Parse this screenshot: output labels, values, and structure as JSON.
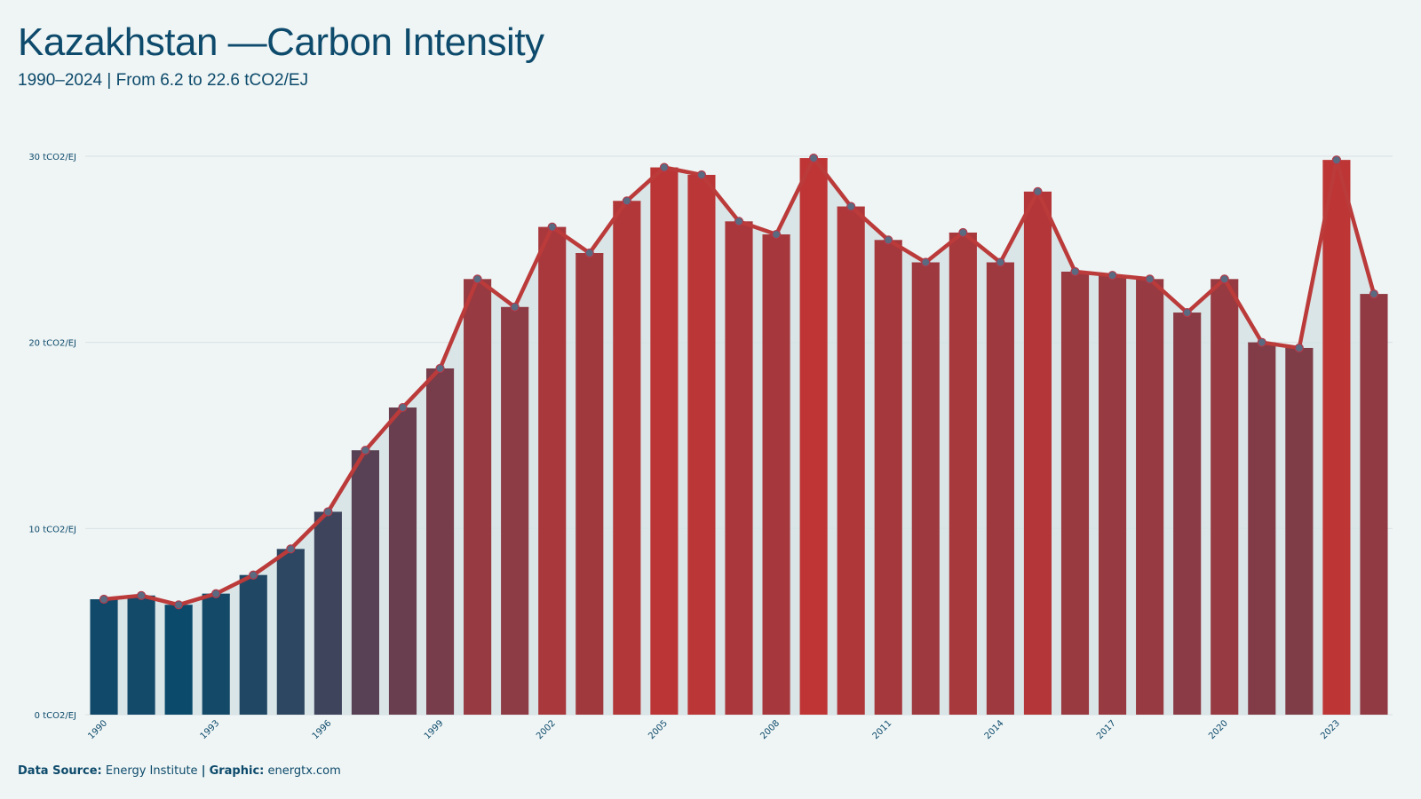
{
  "header": {
    "title": "Kazakhstan —Carbon Intensity",
    "subtitle": "1990–2024 | From 6.2 to 22.6 tCO2/EJ"
  },
  "footer": {
    "source_label": "Data Source:",
    "source_value": "Energy Institute",
    "separator": "|",
    "graphic_label": "Graphic:",
    "graphic_value": "energtx.com"
  },
  "colors": {
    "background": "#eff5f5",
    "line": "#bb3a3a",
    "area": "#d6e3e6",
    "low": "#0b4a6b",
    "high": "#bf3535",
    "grid": "#d9e1e3",
    "text": "#0d4a6b"
  },
  "chart_data": {
    "type": "bar",
    "overlay": "line",
    "unit": "tCO2/EJ",
    "x": [
      1990,
      1991,
      1992,
      1993,
      1994,
      1995,
      1996,
      1997,
      1998,
      1999,
      2000,
      2001,
      2002,
      2003,
      2004,
      2005,
      2006,
      2007,
      2008,
      2009,
      2010,
      2011,
      2012,
      2013,
      2014,
      2015,
      2016,
      2017,
      2018,
      2019,
      2020,
      2021,
      2022,
      2023,
      2024
    ],
    "values": [
      6.2,
      6.4,
      5.9,
      6.5,
      7.5,
      8.9,
      10.9,
      14.2,
      16.5,
      18.6,
      23.4,
      21.9,
      26.2,
      24.8,
      27.6,
      29.4,
      29.0,
      26.5,
      25.8,
      29.9,
      27.3,
      25.5,
      24.3,
      25.9,
      24.3,
      28.1,
      23.8,
      23.6,
      23.4,
      21.6,
      23.4,
      20.0,
      19.7,
      29.8,
      22.6
    ],
    "x_tick_labels": [
      "1990",
      "1993",
      "1996",
      "1999",
      "2002",
      "2005",
      "2008",
      "2011",
      "2014",
      "2017",
      "2020",
      "2023"
    ],
    "y_ticks": [
      0,
      10,
      20,
      30
    ],
    "y_tick_labels": [
      "0 tCO2/EJ",
      "10 tCO2/EJ",
      "20 tCO2/EJ",
      "30 tCO2/EJ"
    ],
    "ylim": [
      0,
      30
    ],
    "grid": true,
    "legend": "none"
  }
}
